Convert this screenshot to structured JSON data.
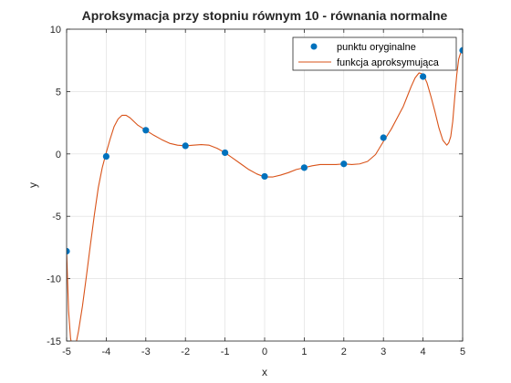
{
  "chart_data": {
    "type": "line",
    "title": "Aproksymacja przy stopniu równym 10 - równania normalne",
    "xlabel": "x",
    "ylabel": "y",
    "xlim": [
      -5,
      5
    ],
    "ylim": [
      -15,
      10
    ],
    "xticks": [
      -5,
      -4,
      -3,
      -2,
      -1,
      0,
      1,
      2,
      3,
      4,
      5
    ],
    "yticks": [
      -15,
      -10,
      -5,
      0,
      5,
      10
    ],
    "grid": true,
    "legend_position": "top-right",
    "series": [
      {
        "name": "punktu oryginalne",
        "kind": "scatter",
        "color": "#0072BD",
        "x": [
          -5,
          -4,
          -3,
          -2,
          -1,
          0,
          1,
          2,
          3,
          4,
          5
        ],
        "y": [
          -7.8,
          -0.2,
          1.9,
          0.65,
          0.1,
          -1.8,
          -1.1,
          -0.8,
          1.3,
          6.2,
          8.3
        ]
      },
      {
        "name": "funkcja aproksymująca",
        "kind": "line",
        "color": "#D95319",
        "x": [
          -5,
          -4.95,
          -4.9,
          -4.85,
          -4.8,
          -4.75,
          -4.7,
          -4.65,
          -4.6,
          -4.5,
          -4.4,
          -4.3,
          -4.2,
          -4.1,
          -4.0,
          -3.9,
          -3.8,
          -3.7,
          -3.6,
          -3.5,
          -3.4,
          -3.3,
          -3.2,
          -3.1,
          -3.0,
          -2.8,
          -2.6,
          -2.4,
          -2.2,
          -2.0,
          -1.8,
          -1.6,
          -1.4,
          -1.2,
          -1.0,
          -0.8,
          -0.6,
          -0.4,
          -0.2,
          0.0,
          0.2,
          0.4,
          0.6,
          0.8,
          1.0,
          1.2,
          1.4,
          1.6,
          1.8,
          2.0,
          2.2,
          2.4,
          2.6,
          2.8,
          3.0,
          3.2,
          3.4,
          3.5,
          3.6,
          3.7,
          3.8,
          3.9,
          4.0,
          4.1,
          4.2,
          4.3,
          4.4,
          4.5,
          4.6,
          4.65,
          4.7,
          4.75,
          4.8,
          4.85,
          4.9,
          4.95,
          5.0
        ],
        "y": [
          -7.8,
          -12.6,
          -14.8,
          -15.5,
          -15.4,
          -15.0,
          -14.2,
          -13.2,
          -12.2,
          -9.8,
          -7.3,
          -4.9,
          -2.7,
          -1.1,
          0.1,
          1.2,
          2.2,
          2.8,
          3.1,
          3.1,
          2.9,
          2.6,
          2.3,
          2.1,
          1.9,
          1.5,
          1.15,
          0.85,
          0.7,
          0.65,
          0.7,
          0.75,
          0.7,
          0.45,
          0.1,
          -0.35,
          -0.8,
          -1.25,
          -1.6,
          -1.85,
          -1.85,
          -1.7,
          -1.5,
          -1.25,
          -1.1,
          -0.95,
          -0.85,
          -0.85,
          -0.85,
          -0.8,
          -0.85,
          -0.8,
          -0.6,
          -0.05,
          1.0,
          2.0,
          3.2,
          3.8,
          4.6,
          5.4,
          6.1,
          6.5,
          6.4,
          5.7,
          4.6,
          3.4,
          2.1,
          1.1,
          0.7,
          0.9,
          1.4,
          2.6,
          4.5,
          6.3,
          7.6,
          8.1,
          8.3
        ]
      }
    ]
  }
}
